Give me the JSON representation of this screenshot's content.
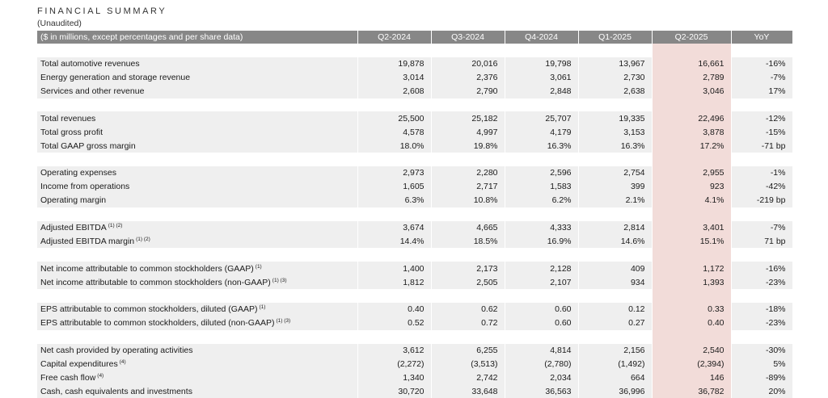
{
  "title": "FINANCIAL SUMMARY",
  "subtitle": "(Unaudited)",
  "header": {
    "label": "($ in millions, except percentages and per share data)",
    "columns": [
      "Q2-2024",
      "Q3-2024",
      "Q4-2024",
      "Q1-2025",
      "Q2-2025",
      "YoY"
    ]
  },
  "colors": {
    "header_bg": "#878787",
    "row_bg": "#efefef",
    "highlight_col": "#f2dcd9"
  },
  "groups": [
    {
      "rows": [
        {
          "label": "Total automotive revenues",
          "note": "",
          "values": [
            "19,878",
            "20,016",
            "19,798",
            "13,967",
            "16,661",
            "-16%"
          ]
        },
        {
          "label": "Energy generation and storage revenue",
          "note": "",
          "values": [
            "3,014",
            "2,376",
            "3,061",
            "2,730",
            "2,789",
            "-7%"
          ]
        },
        {
          "label": "Services and other revenue",
          "note": "",
          "values": [
            "2,608",
            "2,790",
            "2,848",
            "2,638",
            "3,046",
            "17%"
          ]
        }
      ]
    },
    {
      "rows": [
        {
          "label": "Total revenues",
          "note": "",
          "values": [
            "25,500",
            "25,182",
            "25,707",
            "19,335",
            "22,496",
            "-12%"
          ]
        },
        {
          "label": "Total gross profit",
          "note": "",
          "values": [
            "4,578",
            "4,997",
            "4,179",
            "3,153",
            "3,878",
            "-15%"
          ]
        },
        {
          "label": "Total GAAP gross margin",
          "note": "",
          "values": [
            "18.0%",
            "19.8%",
            "16.3%",
            "16.3%",
            "17.2%",
            "-71 bp"
          ]
        }
      ]
    },
    {
      "rows": [
        {
          "label": "Operating expenses",
          "note": "",
          "values": [
            "2,973",
            "2,280",
            "2,596",
            "2,754",
            "2,955",
            "-1%"
          ]
        },
        {
          "label": "Income from operations",
          "note": "",
          "values": [
            "1,605",
            "2,717",
            "1,583",
            "399",
            "923",
            "-42%"
          ]
        },
        {
          "label": "Operating margin",
          "note": "",
          "values": [
            "6.3%",
            "10.8%",
            "6.2%",
            "2.1%",
            "4.1%",
            "-219 bp"
          ]
        }
      ]
    },
    {
      "rows": [
        {
          "label": "Adjusted EBITDA",
          "note": "(1) (2)",
          "values": [
            "3,674",
            "4,665",
            "4,333",
            "2,814",
            "3,401",
            "-7%"
          ]
        },
        {
          "label": "Adjusted EBITDA margin",
          "note": "(1) (2)",
          "values": [
            "14.4%",
            "18.5%",
            "16.9%",
            "14.6%",
            "15.1%",
            "71 bp"
          ]
        }
      ]
    },
    {
      "rows": [
        {
          "label": "Net income attributable to common stockholders (GAAP)",
          "note": "(1)",
          "values": [
            "1,400",
            "2,173",
            "2,128",
            "409",
            "1,172",
            "-16%"
          ]
        },
        {
          "label": "Net income attributable to common stockholders (non-GAAP)",
          "note": "(1) (3)",
          "values": [
            "1,812",
            "2,505",
            "2,107",
            "934",
            "1,393",
            "-23%"
          ]
        }
      ]
    },
    {
      "rows": [
        {
          "label": "EPS attributable to common stockholders, diluted (GAAP)",
          "note": "(1)",
          "values": [
            "0.40",
            "0.62",
            "0.60",
            "0.12",
            "0.33",
            "-18%"
          ]
        },
        {
          "label": "EPS attributable to common stockholders, diluted (non-GAAP)",
          "note": "(1) (3)",
          "values": [
            "0.52",
            "0.72",
            "0.60",
            "0.27",
            "0.40",
            "-23%"
          ]
        }
      ]
    },
    {
      "rows": [
        {
          "label": "Net cash provided by operating activities",
          "note": "",
          "values": [
            "3,612",
            "6,255",
            "4,814",
            "2,156",
            "2,540",
            "-30%"
          ]
        },
        {
          "label": "Capital expenditures",
          "note": "(4)",
          "values": [
            "(2,272)",
            "(3,513)",
            "(2,780)",
            "(1,492)",
            "(2,394)",
            "5%"
          ]
        },
        {
          "label": "Free cash flow",
          "note": "(4)",
          "values": [
            "1,340",
            "2,742",
            "2,034",
            "664",
            "146",
            "-89%"
          ]
        },
        {
          "label": "Cash, cash equivalents and investments",
          "note": "",
          "values": [
            "30,720",
            "33,648",
            "36,563",
            "36,996",
            "36,782",
            "20%"
          ]
        }
      ]
    }
  ]
}
